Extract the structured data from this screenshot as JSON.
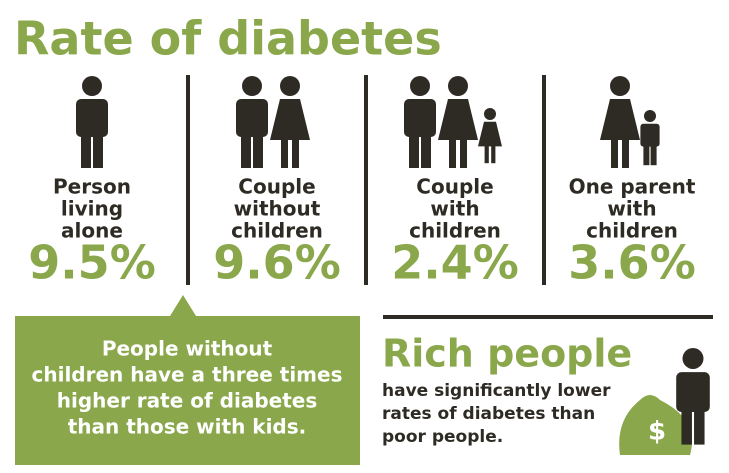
{
  "title": "Rate of diabetes",
  "groups": [
    {
      "label": [
        "Person",
        "living",
        "alone"
      ],
      "value": "9.5%"
    },
    {
      "label": [
        "Couple",
        "without",
        "children"
      ],
      "value": "9.6%"
    },
    {
      "label": [
        "Couple",
        "with",
        "children"
      ],
      "value": "2.4%"
    },
    {
      "label": [
        "One parent",
        "with",
        "children"
      ],
      "value": "3.6%"
    }
  ],
  "callout": [
    "People without",
    "children have a three times",
    "higher rate of diabetes",
    "than those with kids."
  ],
  "rich": {
    "heading": "Rich people",
    "text": [
      "have significantly lower",
      "rates of diabetes than",
      "poor people."
    ],
    "icon": "$"
  }
}
